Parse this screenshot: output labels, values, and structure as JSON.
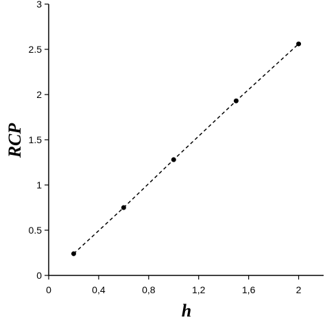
{
  "chart_data": {
    "type": "line",
    "x_label": "h",
    "y_label": "RCP",
    "x": [
      0.2,
      0.6,
      1.0,
      1.5,
      2.0
    ],
    "series": [
      {
        "color": "#000000",
        "values": [
          0.24,
          0.75,
          1.28,
          1.93,
          2.56
        ]
      }
    ],
    "line_style": "dashed",
    "xlim": [
      0,
      2.2
    ],
    "xticks": [
      0,
      {
        "value": 0.4,
        "label": "0,4"
      },
      {
        "value": 0.8,
        "label": "0,8"
      },
      {
        "value": 1.2,
        "label": "1,2"
      },
      {
        "value": 1.6,
        "label": "1,6"
      },
      2
    ],
    "ylim": [
      0,
      3
    ],
    "yticks": [
      0,
      0.5,
      1,
      1.5,
      2,
      2.5,
      3
    ],
    "grid": false
  }
}
